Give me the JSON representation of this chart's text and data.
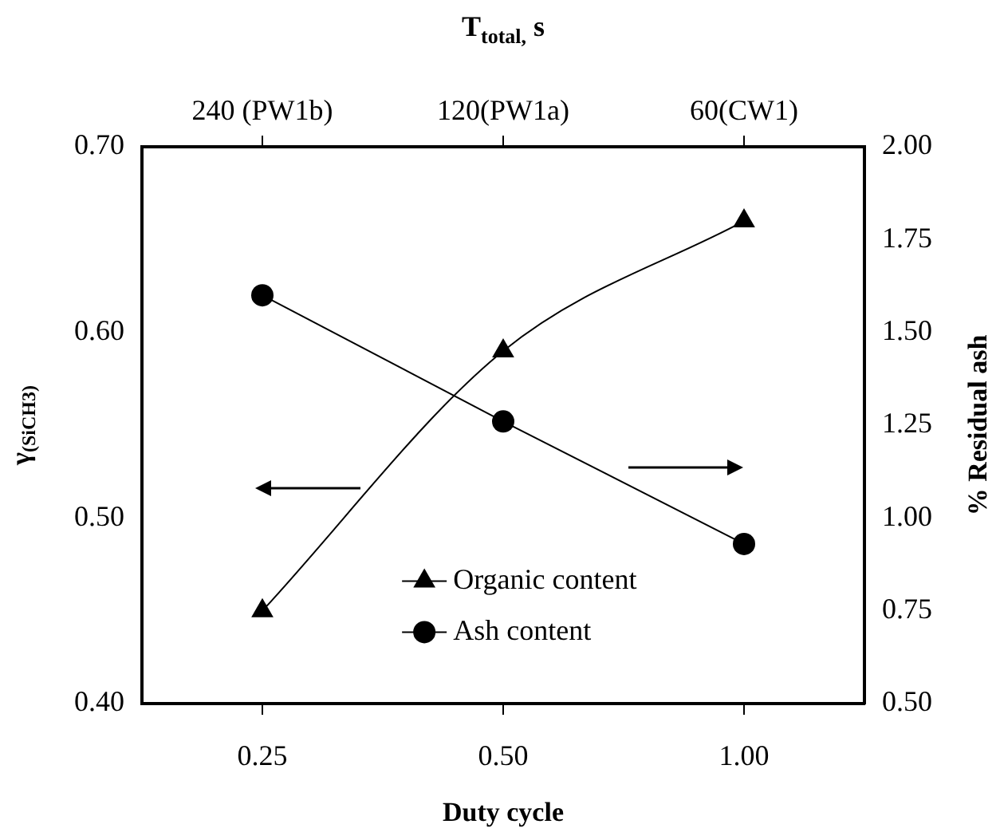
{
  "chart_data": {
    "type": "line",
    "xlabel": "Duty cycle",
    "ylabel": "γ$_{(SiCH3)}$",
    "y2label": "% Residual ash",
    "x2label": "T$_{total,}$ s",
    "categories": [
      "0.25",
      "0.50",
      "1.00"
    ],
    "series": [
      {
        "name": "Organic content",
        "color": "#000000",
        "values": [
          0.45,
          0.59,
          0.66
        ],
        "marker": "triangle",
        "axis": "y"
      },
      {
        "name": "Ash content",
        "color": "#000000",
        "values": [
          1.6,
          1.26,
          0.93
        ],
        "marker": "circle",
        "axis": "y2"
      }
    ],
    "ylim": [
      0.4,
      0.7
    ],
    "yticks": [
      {
        "value": 0.4,
        "label": "0.40"
      },
      {
        "value": 0.5,
        "label": "0.50"
      },
      {
        "value": 0.6,
        "label": "0.60"
      },
      {
        "value": 0.7,
        "label": "0.70"
      }
    ],
    "y2lim": [
      0.5,
      2.0
    ],
    "y2ticks": [
      {
        "value": 0.5,
        "label": "0.50"
      },
      {
        "value": 0.75,
        "label": "0.75"
      },
      {
        "value": 1.0,
        "label": "1.00"
      },
      {
        "value": 1.25,
        "label": "1.25"
      },
      {
        "value": 1.5,
        "label": "1.50"
      },
      {
        "value": 1.75,
        "label": "1.75"
      },
      {
        "value": 2.0,
        "label": "2.00"
      }
    ],
    "annotations": [
      "240 (PW1b)",
      "120(PW1a)",
      "60(CW1)"
    ],
    "grid": false,
    "legend": "bottom"
  }
}
